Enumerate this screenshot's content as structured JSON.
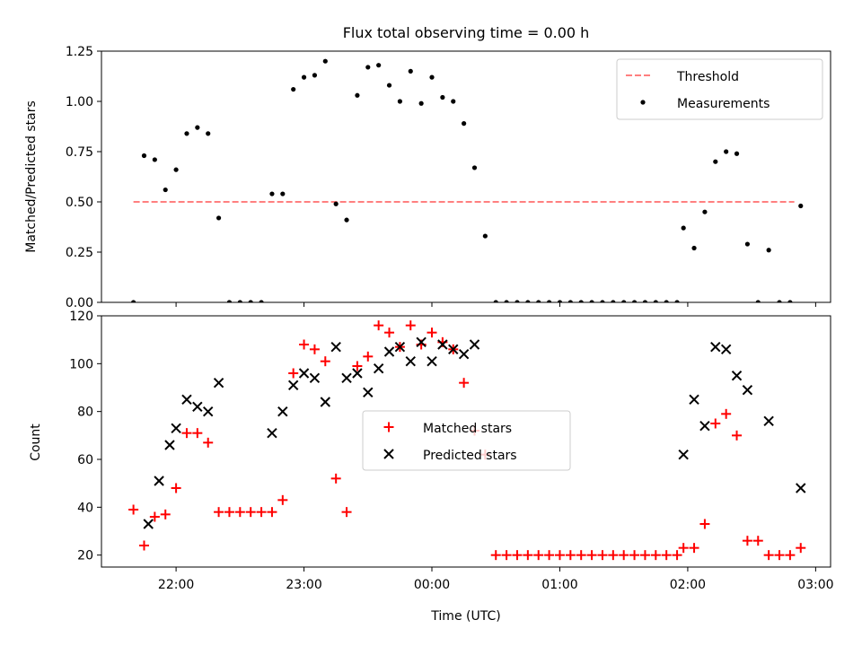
{
  "chart_data": [
    {
      "type": "scatter",
      "title": "Flux total observing time = 0.00 h",
      "xlabel": "",
      "ylabel": "Matched/Predicted stars",
      "xlim": [
        "21:25",
        "03:07"
      ],
      "ylim": [
        0,
        1.25
      ],
      "yticks": [
        0.0,
        0.25,
        0.5,
        0.75,
        1.0,
        1.25
      ],
      "ytick_labels": [
        "0.00",
        "0.25",
        "0.50",
        "0.75",
        "1.00",
        "1.25"
      ],
      "xticks": [
        "22:00",
        "23:00",
        "00:00",
        "01:00",
        "02:00",
        "03:00"
      ],
      "show_xtick_labels": false,
      "legend": {
        "position": "top-right",
        "entries": [
          "Threshold",
          "Measurements"
        ]
      },
      "grid": false,
      "threshold": {
        "name": "Threshold",
        "value": 0.5,
        "x_range": [
          "21:40",
          "02:50"
        ],
        "color": "#ff7f7f",
        "style": "dashed"
      },
      "series": [
        {
          "name": "Measurements",
          "color": "#000000",
          "marker": "dot",
          "points": [
            [
              "21:40",
              0.0
            ],
            [
              "21:45",
              0.73
            ],
            [
              "21:50",
              0.71
            ],
            [
              "21:55",
              0.56
            ],
            [
              "22:00",
              0.66
            ],
            [
              "22:05",
              0.84
            ],
            [
              "22:10",
              0.87
            ],
            [
              "22:15",
              0.84
            ],
            [
              "22:20",
              0.42
            ],
            [
              "22:25",
              0.0
            ],
            [
              "22:30",
              0.0
            ],
            [
              "22:35",
              0.0
            ],
            [
              "22:40",
              0.0
            ],
            [
              "22:45",
              0.54
            ],
            [
              "22:50",
              0.54
            ],
            [
              "22:55",
              1.06
            ],
            [
              "23:00",
              1.12
            ],
            [
              "23:05",
              1.13
            ],
            [
              "23:10",
              1.2
            ],
            [
              "23:15",
              0.49
            ],
            [
              "23:20",
              0.41
            ],
            [
              "23:25",
              1.03
            ],
            [
              "23:30",
              1.17
            ],
            [
              "23:35",
              1.18
            ],
            [
              "23:40",
              1.08
            ],
            [
              "23:45",
              1.0
            ],
            [
              "23:50",
              1.15
            ],
            [
              "23:55",
              0.99
            ],
            [
              "00:00",
              1.12
            ],
            [
              "00:05",
              1.02
            ],
            [
              "00:10",
              1.0
            ],
            [
              "00:15",
              0.89
            ],
            [
              "00:20",
              0.67
            ],
            [
              "00:25",
              0.33
            ],
            [
              "00:30",
              0.0
            ],
            [
              "00:35",
              0.0
            ],
            [
              "00:40",
              0.0
            ],
            [
              "00:45",
              0.0
            ],
            [
              "00:50",
              0.0
            ],
            [
              "00:55",
              0.0
            ],
            [
              "01:00",
              0.0
            ],
            [
              "01:05",
              0.0
            ],
            [
              "01:10",
              0.0
            ],
            [
              "01:15",
              0.0
            ],
            [
              "01:20",
              0.0
            ],
            [
              "01:25",
              0.0
            ],
            [
              "01:30",
              0.0
            ],
            [
              "01:35",
              0.0
            ],
            [
              "01:40",
              0.0
            ],
            [
              "01:45",
              0.0
            ],
            [
              "01:50",
              0.0
            ],
            [
              "01:55",
              0.0
            ],
            [
              "01:58",
              0.37
            ],
            [
              "02:03",
              0.27
            ],
            [
              "02:08",
              0.45
            ],
            [
              "02:13",
              0.7
            ],
            [
              "02:18",
              0.75
            ],
            [
              "02:23",
              0.74
            ],
            [
              "02:28",
              0.29
            ],
            [
              "02:33",
              0.0
            ],
            [
              "02:38",
              0.26
            ],
            [
              "02:43",
              0.0
            ],
            [
              "02:48",
              0.0
            ],
            [
              "02:53",
              0.48
            ]
          ]
        }
      ]
    },
    {
      "type": "scatter",
      "title": "",
      "xlabel": "Time (UTC)",
      "ylabel": "Count",
      "xlim": [
        "21:25",
        "03:07"
      ],
      "ylim": [
        15,
        120
      ],
      "yticks": [
        20,
        40,
        60,
        80,
        100,
        120
      ],
      "xticks": [
        "22:00",
        "23:00",
        "00:00",
        "01:00",
        "02:00",
        "03:00"
      ],
      "xtick_labels": [
        "22:00",
        "23:00",
        "00:00",
        "01:00",
        "02:00",
        "03:00"
      ],
      "legend": {
        "position": "center",
        "entries": [
          "Matched stars",
          "Predicted stars"
        ]
      },
      "grid": false,
      "series": [
        {
          "name": "Matched stars",
          "color": "#ff0000",
          "marker": "plus",
          "points": [
            [
              "21:40",
              39
            ],
            [
              "21:45",
              24
            ],
            [
              "21:50",
              36
            ],
            [
              "21:55",
              37
            ],
            [
              "22:00",
              48
            ],
            [
              "22:05",
              71
            ],
            [
              "22:10",
              71
            ],
            [
              "22:15",
              67
            ],
            [
              "22:20",
              38
            ],
            [
              "22:25",
              38
            ],
            [
              "22:30",
              38
            ],
            [
              "22:35",
              38
            ],
            [
              "22:40",
              38
            ],
            [
              "22:45",
              38
            ],
            [
              "22:50",
              43
            ],
            [
              "22:55",
              96
            ],
            [
              "23:00",
              108
            ],
            [
              "23:05",
              106
            ],
            [
              "23:10",
              101
            ],
            [
              "23:15",
              52
            ],
            [
              "23:20",
              38
            ],
            [
              "23:25",
              99
            ],
            [
              "23:30",
              103
            ],
            [
              "23:35",
              116
            ],
            [
              "23:40",
              113
            ],
            [
              "23:45",
              107
            ],
            [
              "23:50",
              116
            ],
            [
              "23:55",
              108
            ],
            [
              "00:00",
              113
            ],
            [
              "00:05",
              109
            ],
            [
              "00:10",
              106
            ],
            [
              "00:15",
              92
            ],
            [
              "00:20",
              72
            ],
            [
              "00:25",
              62
            ],
            [
              "00:30",
              20
            ],
            [
              "00:35",
              20
            ],
            [
              "00:40",
              20
            ],
            [
              "00:45",
              20
            ],
            [
              "00:50",
              20
            ],
            [
              "00:55",
              20
            ],
            [
              "01:00",
              20
            ],
            [
              "01:05",
              20
            ],
            [
              "01:10",
              20
            ],
            [
              "01:15",
              20
            ],
            [
              "01:20",
              20
            ],
            [
              "01:25",
              20
            ],
            [
              "01:30",
              20
            ],
            [
              "01:35",
              20
            ],
            [
              "01:40",
              20
            ],
            [
              "01:45",
              20
            ],
            [
              "01:50",
              20
            ],
            [
              "01:55",
              20
            ],
            [
              "01:58",
              23
            ],
            [
              "02:03",
              23
            ],
            [
              "02:08",
              33
            ],
            [
              "02:13",
              75
            ],
            [
              "02:18",
              79
            ],
            [
              "02:23",
              70
            ],
            [
              "02:28",
              26
            ],
            [
              "02:33",
              26
            ],
            [
              "02:38",
              20
            ],
            [
              "02:43",
              20
            ],
            [
              "02:48",
              20
            ],
            [
              "02:53",
              23
            ]
          ]
        },
        {
          "name": "Predicted stars",
          "color": "#000000",
          "marker": "x",
          "points": [
            [
              "21:47",
              33
            ],
            [
              "21:52",
              51
            ],
            [
              "21:57",
              66
            ],
            [
              "22:00",
              73
            ],
            [
              "22:05",
              85
            ],
            [
              "22:10",
              82
            ],
            [
              "22:15",
              80
            ],
            [
              "22:20",
              92
            ],
            [
              "22:45",
              71
            ],
            [
              "22:50",
              80
            ],
            [
              "22:55",
              91
            ],
            [
              "23:00",
              96
            ],
            [
              "23:05",
              94
            ],
            [
              "23:10",
              84
            ],
            [
              "23:15",
              107
            ],
            [
              "23:20",
              94
            ],
            [
              "23:25",
              96
            ],
            [
              "23:30",
              88
            ],
            [
              "23:35",
              98
            ],
            [
              "23:40",
              105
            ],
            [
              "23:45",
              107
            ],
            [
              "23:50",
              101
            ],
            [
              "23:55",
              109
            ],
            [
              "00:00",
              101
            ],
            [
              "00:05",
              108
            ],
            [
              "00:10",
              106
            ],
            [
              "00:15",
              104
            ],
            [
              "00:20",
              108
            ],
            [
              "01:58",
              62
            ],
            [
              "02:03",
              85
            ],
            [
              "02:08",
              74
            ],
            [
              "02:13",
              107
            ],
            [
              "02:18",
              106
            ],
            [
              "02:23",
              95
            ],
            [
              "02:28",
              89
            ],
            [
              "02:38",
              76
            ],
            [
              "02:53",
              48
            ]
          ]
        }
      ]
    }
  ]
}
